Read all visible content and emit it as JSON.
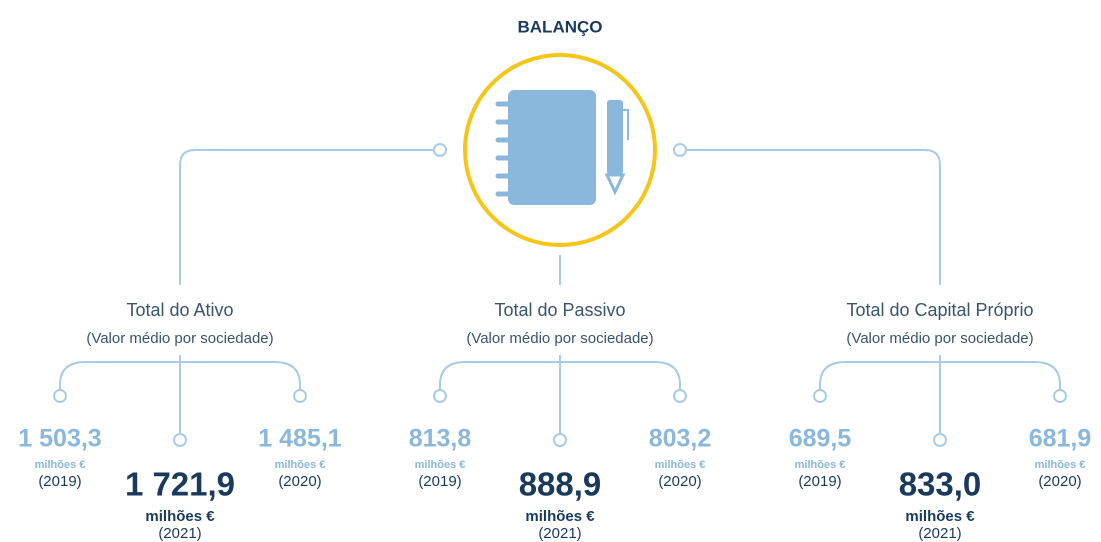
{
  "title": "BALANÇO",
  "groups": [
    {
      "label": "Total do Ativo",
      "sublabel": "(Valor médio por sociedade)",
      "items": [
        {
          "value": "1 503,3",
          "unit": "milhões €",
          "year": "(2019)"
        },
        {
          "value": "1 721,9",
          "unit": "milhões €",
          "year": "(2021)"
        },
        {
          "value": "1 485,1",
          "unit": "milhões €",
          "year": "(2020)"
        }
      ]
    },
    {
      "label": "Total do Passivo",
      "sublabel": "(Valor médio por sociedade)",
      "items": [
        {
          "value": "813,8",
          "unit": "milhões €",
          "year": "(2019)"
        },
        {
          "value": "888,9",
          "unit": "milhões €",
          "year": "(2021)"
        },
        {
          "value": "803,2",
          "unit": "milhões €",
          "year": "(2020)"
        }
      ]
    },
    {
      "label": "Total do Capital Próprio",
      "sublabel": "(Valor médio por sociedade)",
      "items": [
        {
          "value": "689,5",
          "unit": "milhões €",
          "year": "(2019)"
        },
        {
          "value": "833,0",
          "unit": "milhões €",
          "year": "(2021)"
        },
        {
          "value": "681,9",
          "unit": "milhões €",
          "year": "(2020)"
        }
      ]
    }
  ]
}
